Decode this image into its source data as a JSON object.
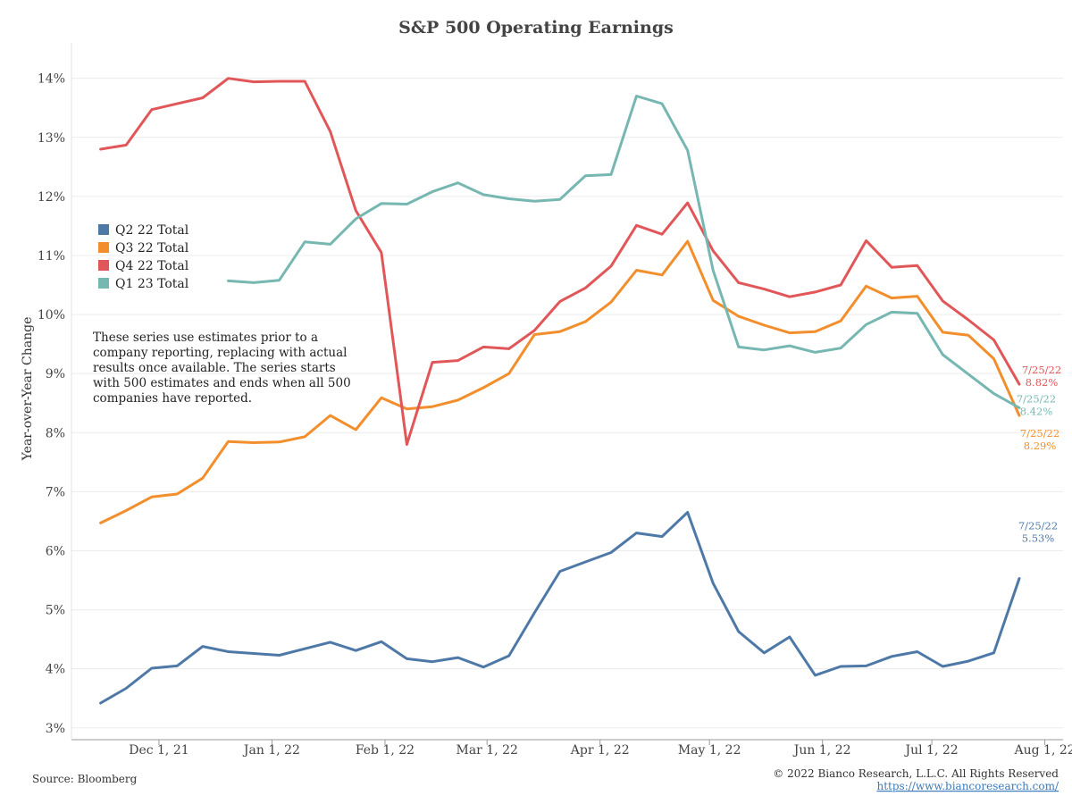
{
  "chart_data": {
    "type": "line",
    "title": "S&P 500 Operating Earnings",
    "ylabel": "Year-over-Year Change",
    "xlabel": "",
    "ylim": [
      2.8,
      14.6
    ],
    "xlim": [
      "2021-11-07",
      "2022-08-06"
    ],
    "y_ticks": [
      "14%",
      "13%",
      "12%",
      "11%",
      "10%",
      "9%",
      "8%",
      "7%",
      "6%",
      "5%",
      "4%",
      "3%"
    ],
    "y_tick_values": [
      14,
      13,
      12,
      11,
      10,
      9,
      8,
      7,
      6,
      5,
      4,
      3
    ],
    "x_ticks": [
      {
        "date": "2021-12-01",
        "label": "Dec 1, 21"
      },
      {
        "date": "2022-01-01",
        "label": "Jan 1, 22"
      },
      {
        "date": "2022-02-01",
        "label": "Feb 1, 22"
      },
      {
        "date": "2022-03-01",
        "label": "Mar 1, 22"
      },
      {
        "date": "2022-04-01",
        "label": "Apr 1, 22"
      },
      {
        "date": "2022-05-01",
        "label": "May 1, 22"
      },
      {
        "date": "2022-06-01",
        "label": "Jun 1, 22"
      },
      {
        "date": "2022-07-01",
        "label": "Jul 1, 22"
      },
      {
        "date": "2022-08-01",
        "label": "Aug 1, 22"
      }
    ],
    "grid": "horizontal",
    "legend_position": "left",
    "x": [
      "2021-11-15",
      "2021-11-22",
      "2021-11-29",
      "2021-12-06",
      "2021-12-13",
      "2021-12-20",
      "2021-12-27",
      "2022-01-03",
      "2022-01-10",
      "2022-01-17",
      "2022-01-24",
      "2022-01-31",
      "2022-02-07",
      "2022-02-14",
      "2022-02-21",
      "2022-02-28",
      "2022-03-07",
      "2022-03-14",
      "2022-03-21",
      "2022-03-28",
      "2022-04-04",
      "2022-04-11",
      "2022-04-18",
      "2022-04-25",
      "2022-05-02",
      "2022-05-09",
      "2022-05-16",
      "2022-05-23",
      "2022-05-30",
      "2022-06-06",
      "2022-06-13",
      "2022-06-20",
      "2022-06-27",
      "2022-07-04",
      "2022-07-11",
      "2022-07-18",
      "2022-07-25"
    ],
    "series": [
      {
        "name": "Q2 22 Total",
        "color": "#4e79a7",
        "values": [
          3.42,
          3.67,
          4.01,
          4.05,
          4.38,
          4.29,
          4.26,
          4.23,
          4.34,
          4.45,
          4.31,
          4.46,
          4.17,
          4.12,
          4.19,
          4.03,
          4.22,
          4.95,
          5.65,
          5.81,
          5.97,
          6.3,
          6.24,
          6.65,
          5.45,
          4.63,
          4.27,
          4.54,
          3.89,
          4.04,
          4.05,
          4.21,
          4.29,
          4.04,
          4.13,
          4.27,
          5.53
        ]
      },
      {
        "name": "Q3 22 Total",
        "color": "#f28e2b",
        "values": [
          6.47,
          6.68,
          6.91,
          6.96,
          7.23,
          7.85,
          7.83,
          7.84,
          7.93,
          8.29,
          8.05,
          8.59,
          8.4,
          8.44,
          8.55,
          8.76,
          9.0,
          9.66,
          9.71,
          9.88,
          10.21,
          10.75,
          10.67,
          11.24,
          10.24,
          9.97,
          9.82,
          9.69,
          9.71,
          9.89,
          10.48,
          10.28,
          10.31,
          9.7,
          9.65,
          9.25,
          8.29
        ]
      },
      {
        "name": "Q4 22 Total",
        "color": "#e15759",
        "values": [
          12.8,
          12.87,
          13.47,
          13.57,
          13.67,
          14.0,
          13.94,
          13.95,
          13.95,
          13.1,
          11.76,
          11.05,
          7.8,
          9.19,
          9.22,
          9.45,
          9.42,
          9.73,
          10.22,
          10.45,
          10.82,
          11.51,
          11.36,
          11.89,
          11.08,
          10.54,
          10.43,
          10.3,
          10.38,
          10.5,
          11.25,
          10.8,
          10.83,
          10.23,
          9.91,
          9.57,
          8.82
        ]
      },
      {
        "name": "Q1 23 Total",
        "color": "#76b7b2",
        "values": [
          null,
          null,
          null,
          null,
          null,
          10.57,
          10.54,
          10.58,
          11.23,
          11.19,
          11.62,
          11.88,
          11.87,
          12.08,
          12.23,
          12.03,
          11.96,
          11.92,
          11.95,
          12.35,
          12.37,
          13.7,
          13.57,
          12.78,
          10.75,
          9.45,
          9.4,
          9.47,
          9.36,
          9.43,
          9.83,
          10.04,
          10.02,
          9.32,
          8.99,
          8.66,
          8.42
        ]
      }
    ],
    "end_labels": [
      {
        "series": "Q2 22 Total",
        "date": "7/25/22",
        "value": "5.53%"
      },
      {
        "series": "Q3 22 Total",
        "date": "7/25/22",
        "value": "8.29%"
      },
      {
        "series": "Q4 22 Total",
        "date": "7/25/22",
        "value": "8.82%"
      },
      {
        "series": "Q1 23 Total",
        "date": "7/25/22",
        "value": "8.42%"
      }
    ],
    "annotation": [
      "These series use estimates prior to a",
      "company reporting, replacing with actual",
      "results once available. The series starts",
      "with 500 estimates and ends when all 500",
      "companies have reported."
    ]
  },
  "footer": {
    "source": "Source: Bloomberg",
    "copyright": "© 2022 Bianco Research, L.L.C. All Rights Reserved",
    "url": "https://www.biancoresearch.com/"
  }
}
